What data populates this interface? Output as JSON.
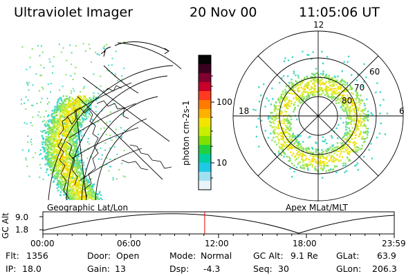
{
  "header": {
    "instrument": "Ultraviolet Imager",
    "date": "20 Nov 00",
    "time": "11:05:06 UT"
  },
  "colorbar": {
    "unit_label": "photon cm-2s-1",
    "tick_labels": [
      "100",
      "10"
    ],
    "colors": [
      "#050505",
      "#3a0020",
      "#800030",
      "#c8002a",
      "#ff3a1e",
      "#ff7a00",
      "#ffb000",
      "#f2e500",
      "#c8ee00",
      "#80e000",
      "#20d040",
      "#00d0a0",
      "#20c8e8",
      "#a0e0f0",
      "#e8f4f8"
    ]
  },
  "left_map": {
    "label": "Geographic Lat/Lon",
    "axis_label": "GC Alt",
    "axis_ticks": [
      "9.0",
      "1.8"
    ]
  },
  "right_map": {
    "label": "Apex MLat/MLT",
    "mlt_labels": [
      "12",
      "18",
      "6"
    ],
    "mlat_labels": [
      "60",
      "70",
      "80"
    ]
  },
  "timeline": {
    "ticks": [
      "00:00",
      "06:00",
      "12:00",
      "18:00",
      "23:59"
    ],
    "current_fraction": 0.4605,
    "marker_color": "#e00000"
  },
  "footer": {
    "flt": {
      "label": "Flt:",
      "value": "1356"
    },
    "ip": {
      "label": "IP:",
      "value": "18.0"
    },
    "door": {
      "label": "Door:",
      "value": "Open"
    },
    "gain": {
      "label": "Gain:",
      "value": "13"
    },
    "mode": {
      "label": "Mode:",
      "value": "Normal"
    },
    "dsp": {
      "label": "Dsp:",
      "value": "-4.3"
    },
    "gc_alt": {
      "label": "GC Alt:",
      "value": "9.1 Re"
    },
    "seq": {
      "label": "Seq:",
      "value": "30"
    },
    "glat": {
      "label": "GLat:",
      "value": "63.9"
    },
    "glon": {
      "label": "GLon:",
      "value": "206.3"
    }
  }
}
